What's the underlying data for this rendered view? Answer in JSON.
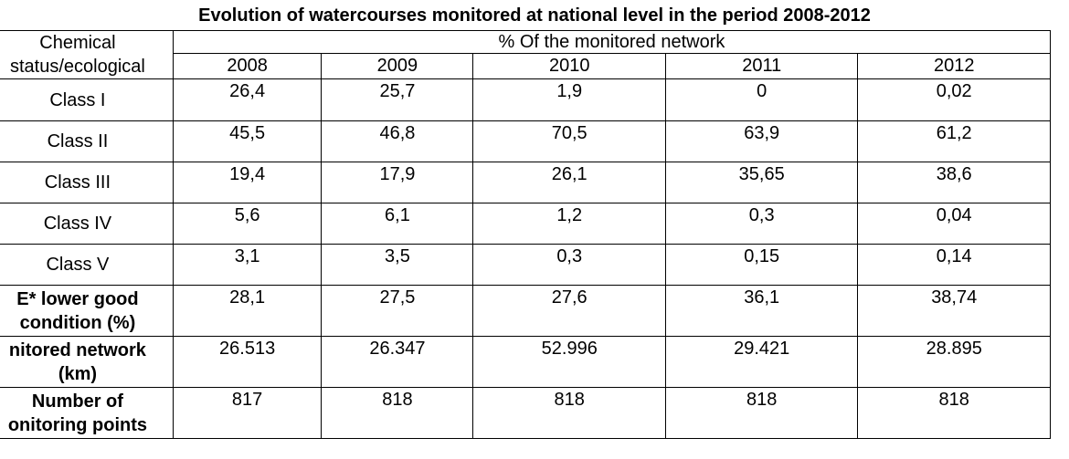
{
  "title": "Evolution of watercourses monitored at national level in the period 2008-2012",
  "header": {
    "row_label_line1": "Chemical",
    "row_label_line2": "status/ecological",
    "span_label": "% Of the monitored network",
    "years": [
      "2008",
      "2009",
      "2010",
      "2011",
      "2012"
    ]
  },
  "rows": [
    {
      "label_line1": "Class I",
      "label_line2": "",
      "bold": false,
      "values": [
        "26,4",
        "25,7",
        "1,9",
        "0",
        "0,02"
      ]
    },
    {
      "label_line1": "Class II",
      "label_line2": "",
      "bold": false,
      "values": [
        "45,5",
        "46,8",
        "70,5",
        "63,9",
        "61,2"
      ]
    },
    {
      "label_line1": "Class III",
      "label_line2": "",
      "bold": false,
      "values": [
        "19,4",
        "17,9",
        "26,1",
        "35,65",
        "38,6"
      ]
    },
    {
      "label_line1": "Class IV",
      "label_line2": "",
      "bold": false,
      "values": [
        "5,6",
        "6,1",
        "1,2",
        "0,3",
        "0,04"
      ]
    },
    {
      "label_line1": "Class V",
      "label_line2": "",
      "bold": false,
      "values": [
        "3,1",
        "3,5",
        "0,3",
        "0,15",
        "0,14"
      ]
    },
    {
      "label_line1": "E* lower good",
      "label_line2": "condition (%)",
      "bold": true,
      "values": [
        "28,1",
        "27,5",
        "27,6",
        "36,1",
        "38,74"
      ]
    },
    {
      "label_line1": "nitored network",
      "label_line2": "(km)",
      "bold": true,
      "values": [
        "26.513",
        "26.347",
        "52.996",
        "29.421",
        "28.895"
      ]
    },
    {
      "label_line1": "Number of",
      "label_line2": "onitoring points",
      "bold": true,
      "values": [
        "817",
        "818",
        "818",
        "818",
        "818"
      ]
    }
  ]
}
